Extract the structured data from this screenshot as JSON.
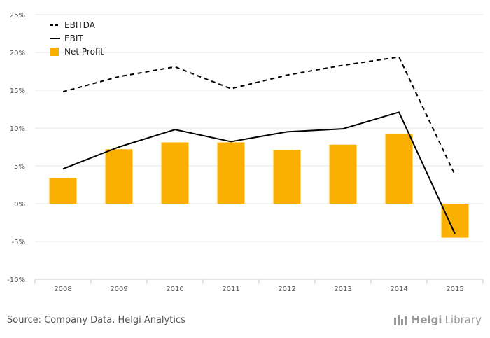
{
  "chart_data": {
    "type": "bar",
    "categories": [
      "2008",
      "2009",
      "2010",
      "2011",
      "2012",
      "2013",
      "2014",
      "2015"
    ],
    "ylim": [
      -10,
      25
    ],
    "yticks": [
      "25%",
      "20%",
      "15%",
      "10%",
      "5%",
      "0%",
      "-5%",
      "-10%"
    ],
    "ytick_values": [
      25,
      20,
      15,
      10,
      5,
      0,
      -5,
      -10
    ],
    "grid": true,
    "legend_placement": "top-left",
    "series": [
      {
        "name": "EBITDA",
        "kind": "line",
        "style": "dashed",
        "color": "#000000",
        "values": [
          14.8,
          16.8,
          18.1,
          15.2,
          17.0,
          18.3,
          19.4,
          3.8
        ]
      },
      {
        "name": "EBIT",
        "kind": "line",
        "style": "solid",
        "color": "#000000",
        "values": [
          4.6,
          7.5,
          9.8,
          8.2,
          9.5,
          9.9,
          12.1,
          -4.0
        ]
      },
      {
        "name": "Net Profit",
        "kind": "bar",
        "color": "#f9b000",
        "values": [
          3.4,
          7.2,
          8.1,
          8.1,
          7.1,
          7.8,
          9.2,
          -4.5
        ]
      }
    ]
  },
  "footer": {
    "source": "Source: Company Data, Helgi Analytics",
    "brand_part1": "Helgi",
    "brand_part2": "Library"
  },
  "icons": {
    "brand_logo": "helgi-library-logo-icon"
  }
}
